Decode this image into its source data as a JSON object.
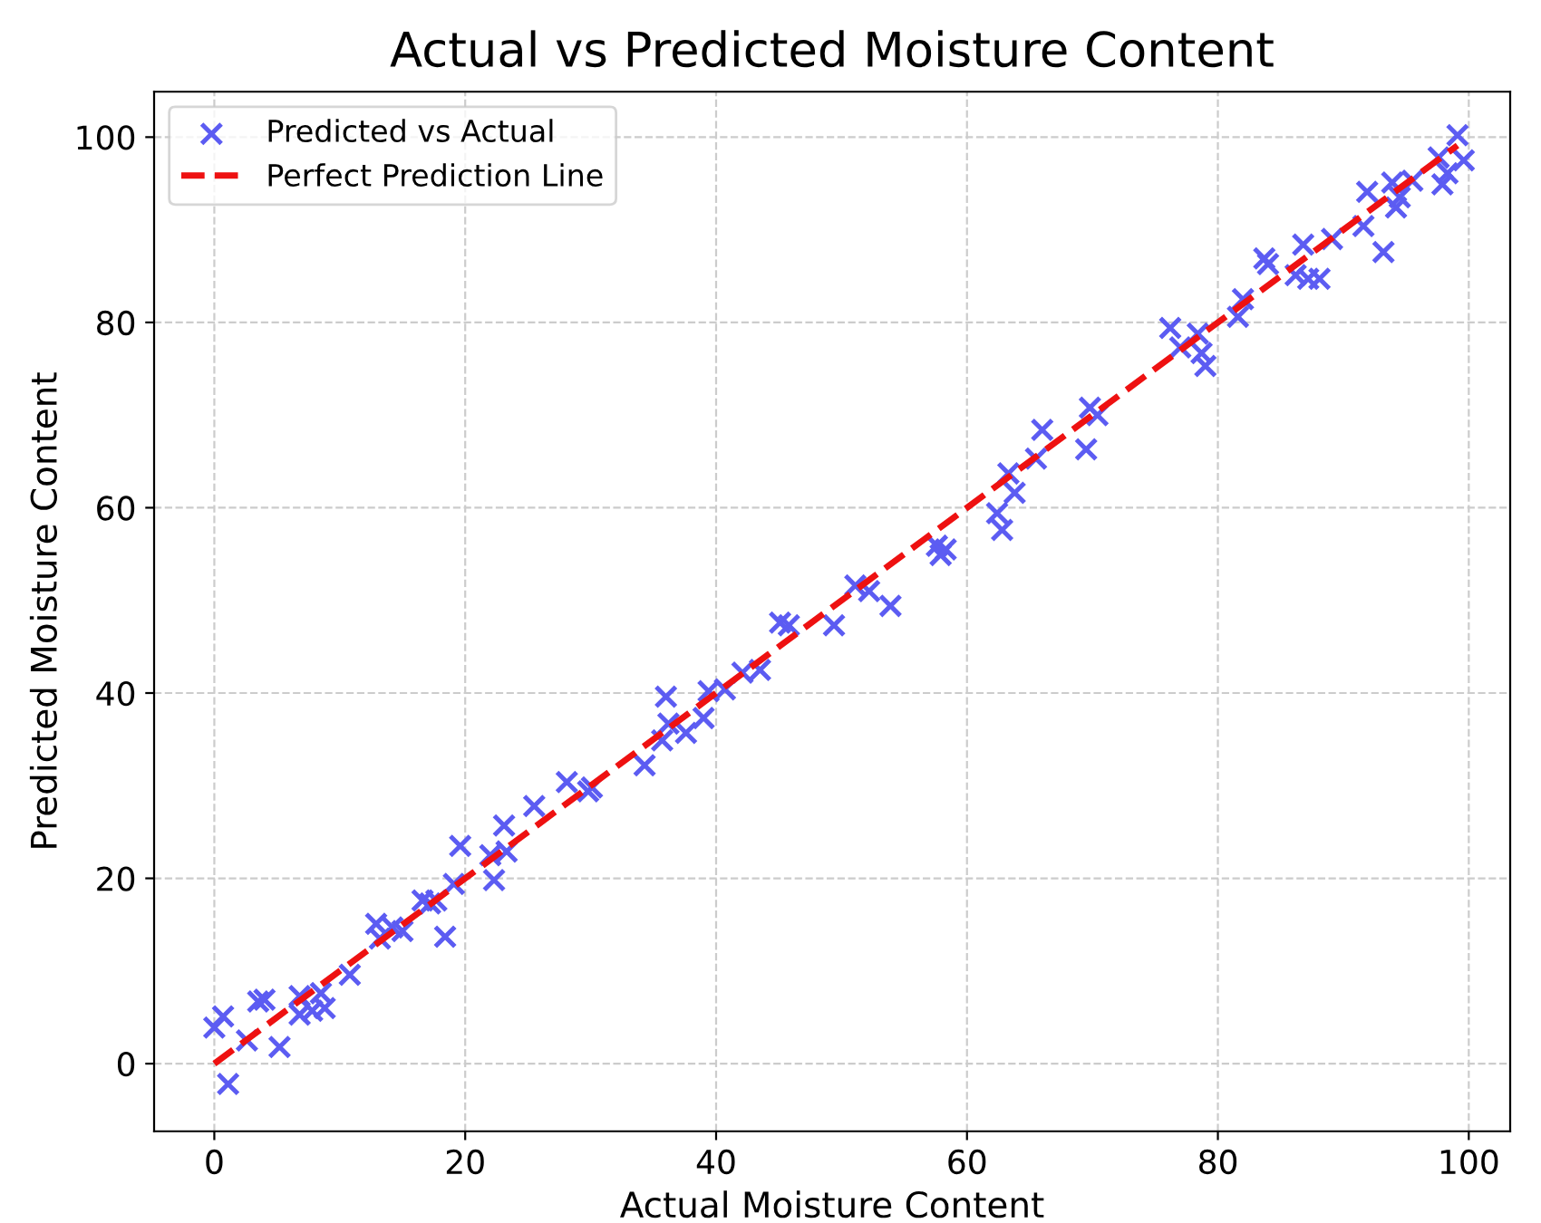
{
  "chart_data": {
    "type": "scatter",
    "title": "Actual vs Predicted Moisture Content",
    "xlabel": "Actual Moisture Content",
    "ylabel": "Predicted Moisture Content",
    "xlim": [
      -4.8,
      103.3
    ],
    "ylim": [
      -7.3,
      104.9
    ],
    "xticks": [
      0,
      20,
      40,
      60,
      80,
      100
    ],
    "yticks": [
      0,
      20,
      40,
      60,
      80,
      100
    ],
    "grid": true,
    "legend": "top left",
    "series": [
      {
        "name": "Predicted vs Actual",
        "marker": "cross",
        "color": "#5c5cf2",
        "x": [
          0,
          0.7,
          1.1,
          2.6,
          3.5,
          4,
          5.2,
          6.8,
          6.8,
          7.8,
          8.5,
          8.8,
          10.8,
          12.9,
          13.2,
          14.2,
          15,
          16.6,
          17.2,
          17.7,
          18.4,
          19.1,
          19.6,
          22,
          22.3,
          23.1,
          23.3,
          25.5,
          28.1,
          29.8,
          30.1,
          34.3,
          35.7,
          36,
          36.2,
          37.6,
          39,
          39.4,
          40.7,
          42.1,
          43.5,
          45.1,
          45.8,
          49.4,
          51.1,
          52.2,
          53.9,
          57.6,
          57.9,
          58.3,
          62.4,
          62.8,
          63.3,
          63.8,
          65.5,
          66,
          69.5,
          69.8,
          70.4,
          76.2,
          77,
          78.4,
          78.7,
          79,
          81.6,
          82,
          83.7,
          84,
          86.2,
          86.8,
          87.2,
          88.1,
          89.1,
          91.6,
          91.9,
          93.2,
          93.9,
          94.2,
          94.5,
          95.5,
          97.6,
          97.9,
          98.3,
          99.1,
          99.6
        ],
        "values": [
          3.9,
          5.1,
          -2.2,
          2.5,
          6.7,
          6.9,
          1.8,
          7.3,
          5.3,
          5.7,
          7.6,
          6,
          9.6,
          15.1,
          13.5,
          14.7,
          14.3,
          17.6,
          17.3,
          17.6,
          13.7,
          19.4,
          23.5,
          22.5,
          19.8,
          25.7,
          22.9,
          27.8,
          30.4,
          29.4,
          29.8,
          32.2,
          34.9,
          39.6,
          36.7,
          35.7,
          37.3,
          40.2,
          40.4,
          42.2,
          42.5,
          47.6,
          47.3,
          47.3,
          51.6,
          51,
          49.4,
          55.9,
          54.9,
          55.5,
          59.4,
          57.6,
          63.7,
          61.6,
          65.3,
          68.4,
          66.3,
          70.8,
          70,
          79.4,
          77.3,
          78.8,
          76.7,
          75.3,
          80.6,
          82.5,
          86.9,
          86.3,
          85.1,
          88.4,
          84.7,
          84.7,
          89,
          90.4,
          94.1,
          87.6,
          95.1,
          92.4,
          93.5,
          95.3,
          97.8,
          94.9,
          96.1,
          100.2,
          97.5
        ]
      },
      {
        "name": "Perfect Prediction Line",
        "type": "line",
        "line_style": "dashed",
        "color": "#ee1111",
        "x": [
          0,
          99.1
        ],
        "values": [
          0,
          99.1
        ]
      }
    ]
  }
}
